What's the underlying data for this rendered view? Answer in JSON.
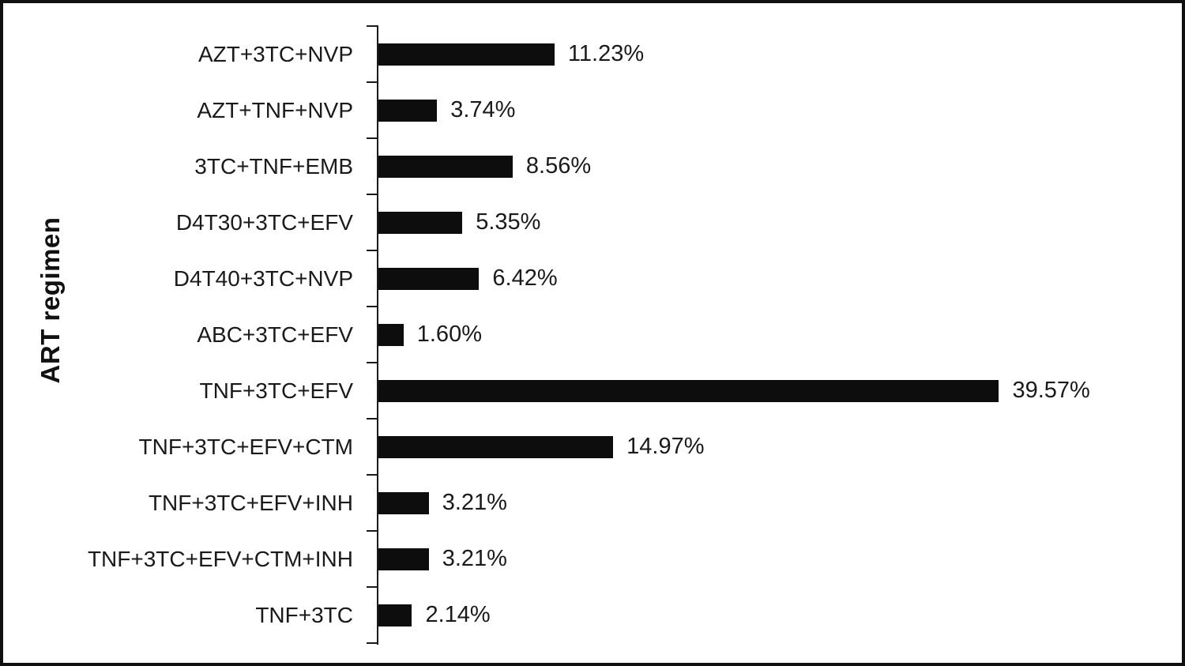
{
  "chart_data": {
    "type": "bar",
    "orientation": "horizontal",
    "title": "",
    "xlabel": "",
    "ylabel": "ART regimen",
    "categories": [
      "AZT+3TC+NVP",
      "AZT+TNF+NVP",
      "3TC+TNF+EMB",
      "D4T30+3TC+EFV",
      "D4T40+3TC+NVP",
      "ABC+3TC+EFV",
      "TNF+3TC+EFV",
      "TNF+3TC+EFV+CTM",
      "TNF+3TC+EFV+INH",
      "TNF+3TC+EFV+CTM+INH",
      "TNF+3TC"
    ],
    "values": [
      11.23,
      3.74,
      8.56,
      5.35,
      6.42,
      1.6,
      39.57,
      14.97,
      3.21,
      3.21,
      2.14
    ],
    "value_labels": [
      "11.23%",
      "3.74%",
      "8.56%",
      "5.35%",
      "6.42%",
      "1.60%",
      "39.57%",
      "14.97%",
      "3.21%",
      "3.21%",
      "2.14%"
    ],
    "xlim": [
      0,
      42
    ],
    "grid": false,
    "legend": false,
    "bar_color": "#0d0d0d",
    "axis_color": "#1a1a1a",
    "text_color": "#1a1a1a",
    "background_color": "#ffffff",
    "frame_color": "#101010"
  }
}
